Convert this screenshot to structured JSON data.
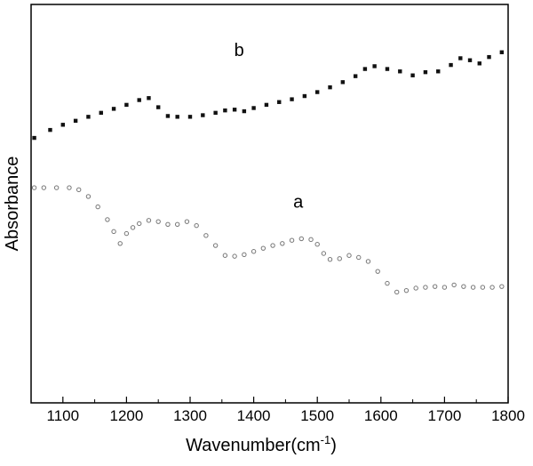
{
  "chart_data": {
    "type": "scatter",
    "title": "",
    "xlabel": "Wavenumber(cm",
    "xlabel_sup": "-1",
    "xlabel_close": ")",
    "ylabel": "Absorbance",
    "xlim": [
      1050,
      1800
    ],
    "ylim": [
      0,
      1
    ],
    "xticks": [
      1100,
      1200,
      1300,
      1400,
      1500,
      1600,
      1700,
      1800
    ],
    "xtick_labels": [
      "1100",
      "1200",
      "1300",
      "1400",
      "1500",
      "1600",
      "1700",
      "1800"
    ],
    "y_tick_labels_shown": false,
    "grid": false,
    "legend": "none",
    "series": [
      {
        "name": "b",
        "marker": "filled-square",
        "color": "#111111",
        "x": [
          1055,
          1080,
          1100,
          1120,
          1140,
          1160,
          1180,
          1200,
          1220,
          1235,
          1250,
          1265,
          1280,
          1300,
          1320,
          1340,
          1355,
          1370,
          1385,
          1400,
          1420,
          1440,
          1460,
          1480,
          1500,
          1520,
          1540,
          1560,
          1575,
          1590,
          1610,
          1630,
          1650,
          1670,
          1690,
          1710,
          1725,
          1740,
          1755,
          1770,
          1790
        ],
        "y": [
          0.665,
          0.685,
          0.698,
          0.708,
          0.718,
          0.728,
          0.738,
          0.748,
          0.76,
          0.765,
          0.742,
          0.72,
          0.718,
          0.718,
          0.722,
          0.728,
          0.734,
          0.736,
          0.732,
          0.74,
          0.748,
          0.755,
          0.762,
          0.77,
          0.78,
          0.792,
          0.805,
          0.82,
          0.838,
          0.845,
          0.838,
          0.832,
          0.822,
          0.83,
          0.832,
          0.848,
          0.865,
          0.86,
          0.852,
          0.868,
          0.88
        ]
      },
      {
        "name": "a",
        "marker": "open-circle",
        "color": "#777777",
        "x": [
          1055,
          1070,
          1090,
          1110,
          1125,
          1140,
          1155,
          1170,
          1180,
          1190,
          1200,
          1210,
          1220,
          1235,
          1250,
          1265,
          1280,
          1295,
          1310,
          1325,
          1340,
          1355,
          1370,
          1385,
          1400,
          1415,
          1430,
          1445,
          1460,
          1475,
          1490,
          1500,
          1510,
          1520,
          1535,
          1550,
          1565,
          1580,
          1595,
          1610,
          1625,
          1640,
          1655,
          1670,
          1685,
          1700,
          1715,
          1730,
          1745,
          1760,
          1775,
          1790
        ],
        "y": [
          0.54,
          0.54,
          0.54,
          0.54,
          0.535,
          0.518,
          0.492,
          0.46,
          0.43,
          0.4,
          0.425,
          0.44,
          0.45,
          0.458,
          0.455,
          0.448,
          0.448,
          0.455,
          0.445,
          0.42,
          0.395,
          0.37,
          0.368,
          0.372,
          0.38,
          0.388,
          0.395,
          0.4,
          0.408,
          0.412,
          0.41,
          0.398,
          0.375,
          0.36,
          0.362,
          0.37,
          0.365,
          0.355,
          0.33,
          0.3,
          0.278,
          0.282,
          0.288,
          0.29,
          0.292,
          0.29,
          0.296,
          0.292,
          0.29,
          0.29,
          0.29,
          0.292
        ]
      }
    ],
    "annotations": [
      {
        "text": "a",
        "x": 1470,
        "y": 0.49
      },
      {
        "text": "b",
        "x": 1377,
        "y": 0.87
      }
    ]
  }
}
